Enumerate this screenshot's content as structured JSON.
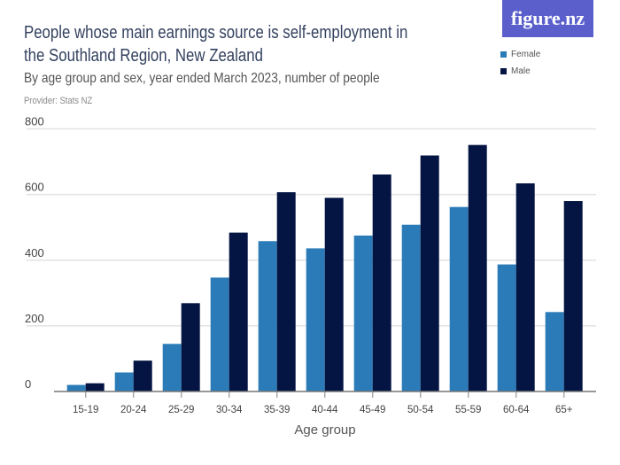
{
  "logo": {
    "text": "figure.nz"
  },
  "chart_data": {
    "type": "bar",
    "title": "People whose main earnings source is self-employment in the Southland Region, New Zealand",
    "title_lines": [
      "People whose main earnings source is self-employment in",
      "the Southland Region, New Zealand"
    ],
    "subtitle": "By age group and sex, year ended March 2023, number of people",
    "provider": "Provider: Stats NZ",
    "xlabel": "Age group",
    "ylabel": "",
    "ylim": [
      0,
      800
    ],
    "yticks": [
      0,
      200,
      400,
      600,
      800
    ],
    "grid": true,
    "legend_placement": "top-right",
    "categories": [
      "15-19",
      "20-24",
      "25-29",
      "30-34",
      "35-39",
      "40-44",
      "45-49",
      "50-54",
      "55-59",
      "60-64",
      "65+"
    ],
    "series": [
      {
        "name": "Female",
        "color": "#2a7bb7",
        "values": [
          20,
          58,
          145,
          347,
          458,
          436,
          475,
          508,
          562,
          387,
          242
        ]
      },
      {
        "name": "Male",
        "color": "#041443",
        "values": [
          25,
          94,
          269,
          484,
          607,
          590,
          661,
          719,
          751,
          634,
          580
        ]
      }
    ]
  }
}
